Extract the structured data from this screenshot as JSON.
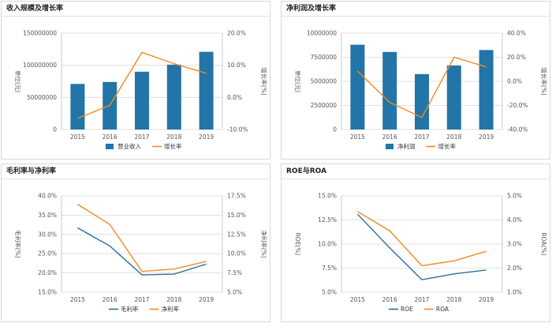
{
  "colors": {
    "bar": "#2275a6",
    "orange": "#f28a24",
    "line_blue": "#2a6f9e",
    "grid": "#d9d9d9",
    "axis_text": "#555555"
  },
  "chart_data": [
    {
      "type": "bar+line",
      "title": "收入规模及增长率",
      "categories": [
        "2015",
        "2016",
        "2017",
        "2018",
        "2019"
      ],
      "series": [
        {
          "name": "营业收入",
          "kind": "bar",
          "axis": "left",
          "values": [
            71000000,
            74000000,
            90000000,
            101000000,
            121000000
          ]
        },
        {
          "name": "增长率",
          "kind": "line",
          "axis": "right",
          "values": [
            -6.5,
            -2.5,
            14.0,
            10.5,
            7.5
          ]
        }
      ],
      "left_axis": {
        "label": "单位(元)",
        "min": 0,
        "max": 150000000,
        "ticks": [
          "0",
          "50000000",
          "100000000",
          "150000000"
        ]
      },
      "right_axis": {
        "label": "增长率(%)",
        "min": -10,
        "max": 20,
        "ticks": [
          "-10.0%",
          "0.0%",
          "10.0%",
          "20.0%"
        ]
      }
    },
    {
      "type": "bar+line",
      "title": "净利润及增长率",
      "categories": [
        "2015",
        "2016",
        "2017",
        "2018",
        "2019"
      ],
      "series": [
        {
          "name": "净利润",
          "kind": "bar",
          "axis": "left",
          "values": [
            8800000,
            8050000,
            5750000,
            6650000,
            8250000
          ]
        },
        {
          "name": "增长率",
          "kind": "line",
          "axis": "right",
          "values": [
            8.5,
            -17.5,
            -30.0,
            20.0,
            12.0
          ]
        }
      ],
      "left_axis": {
        "label": "单位(元)",
        "min": 0,
        "max": 10000000,
        "ticks": [
          "0",
          "2500000",
          "5000000",
          "7500000",
          "10000000"
        ]
      },
      "right_axis": {
        "label": "增长率(%)",
        "min": -40,
        "max": 40,
        "ticks": [
          "-40.0%",
          "-20.0%",
          "0.0%",
          "20.0%",
          "40.0%"
        ]
      }
    },
    {
      "type": "line",
      "title": "毛利率与净利率",
      "categories": [
        "2015",
        "2016",
        "2017",
        "2018",
        "2019"
      ],
      "series": [
        {
          "name": "毛利率",
          "axis": "left",
          "color": "line_blue",
          "values": [
            31.7,
            27.0,
            19.5,
            19.7,
            22.3
          ]
        },
        {
          "name": "净利率",
          "axis": "right",
          "color": "orange",
          "values": [
            16.4,
            13.8,
            7.7,
            8.0,
            9.0
          ]
        }
      ],
      "left_axis": {
        "label": "毛利率(%)",
        "min": 15,
        "max": 40,
        "ticks": [
          "15.0%",
          "20.0%",
          "25.0%",
          "30.0%",
          "35.0%",
          "40.0%"
        ]
      },
      "right_axis": {
        "label": "净利率(%)",
        "min": 5,
        "max": 17.5,
        "ticks": [
          "5.0%",
          "7.5%",
          "10.0%",
          "12.5%",
          "15.0%",
          "17.5%"
        ]
      }
    },
    {
      "type": "line",
      "title": "ROE与ROA",
      "categories": [
        "2015",
        "2016",
        "2017",
        "2018",
        "2019"
      ],
      "series": [
        {
          "name": "ROE",
          "axis": "left",
          "color": "line_blue",
          "values": [
            13.1,
            9.6,
            6.3,
            6.9,
            7.3
          ]
        },
        {
          "name": "ROA",
          "axis": "right",
          "color": "orange",
          "values": [
            4.35,
            3.55,
            2.1,
            2.3,
            2.7
          ]
        }
      ],
      "left_axis": {
        "label": "ROE(%)",
        "min": 5,
        "max": 15,
        "ticks": [
          "5.0%",
          "7.5%",
          "10.0%",
          "12.5%",
          "15.0%"
        ]
      },
      "right_axis": {
        "label": "ROA(%)",
        "min": 1,
        "max": 5,
        "ticks": [
          "1.0%",
          "2.0%",
          "3.0%",
          "4.0%",
          "5.0%"
        ]
      }
    }
  ]
}
